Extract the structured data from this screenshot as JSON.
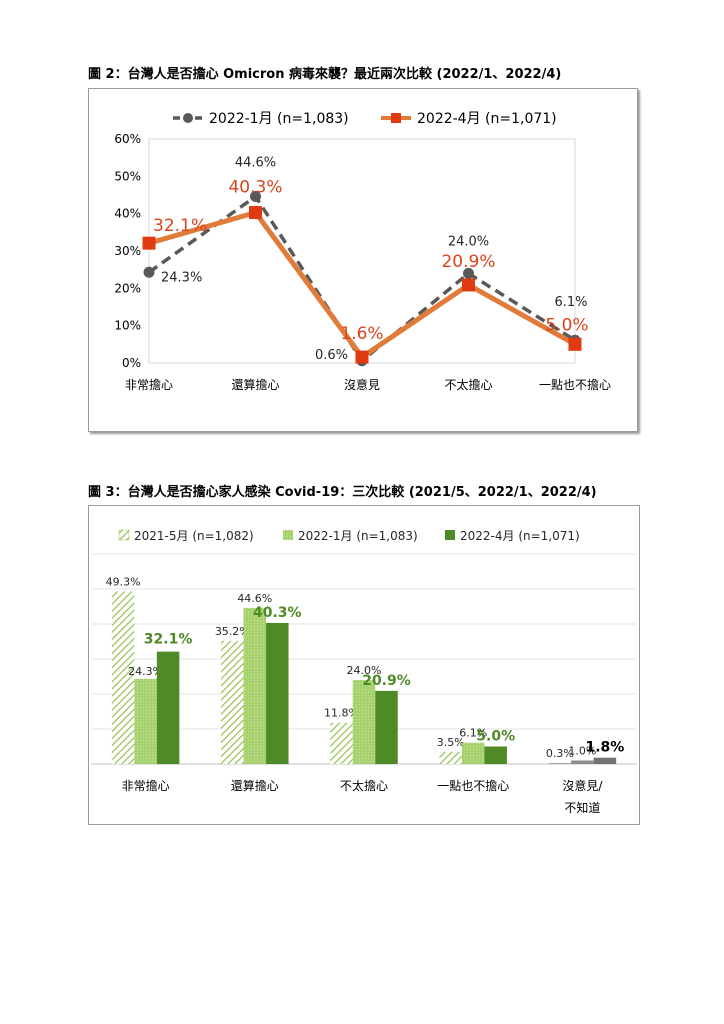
{
  "figure2": {
    "title": "圖 2：台灣人是否擔心 Omicron 病毒來襲？最近兩次比較  (2022/1、2022/4)",
    "chart_data": {
      "type": "line",
      "categories": [
        "非常擔心",
        "還算擔心",
        "沒意見",
        "不太擔心",
        "一點也不擔心"
      ],
      "yticks": [
        "0%",
        "10%",
        "20%",
        "30%",
        "40%",
        "50%",
        "60%"
      ],
      "ylim": [
        0,
        60
      ],
      "grid": false,
      "legend_position": "top",
      "series": [
        {
          "name": "2022-1月  (n=1,083)",
          "values": [
            24.3,
            44.6,
            0.6,
            24.0,
            6.1
          ],
          "labels": [
            "24.3%",
            "44.6%",
            "0.6%",
            "24.0%",
            "6.1%"
          ],
          "color": "#595959",
          "style": "dashed-circle"
        },
        {
          "name": "2022-4月  (n=1,071)",
          "values": [
            32.1,
            40.3,
            1.6,
            20.9,
            5.0
          ],
          "labels": [
            "32.1%",
            "40.3%",
            "1.6%",
            "20.9%",
            "5.0%"
          ],
          "color": "#E07B39",
          "marker_color": "#E03B10",
          "label_color": "#D9441C",
          "style": "solid-square"
        }
      ]
    }
  },
  "figure3": {
    "title": "圖 3：台灣人是否擔心家人感染 Covid-19：三次比較  (2021/5、2022/1、2022/4)",
    "chart_data": {
      "type": "bar",
      "categories": [
        "非常擔心",
        "還算擔心",
        "不太擔心",
        "一點也不擔心",
        "沒意見/\n不知道"
      ],
      "ylim": [
        0,
        60
      ],
      "grid": true,
      "legend_position": "top",
      "series": [
        {
          "name": "2021-5月  (n=1,082)",
          "values": [
            49.3,
            35.2,
            11.8,
            3.5,
            0.3
          ],
          "labels": [
            "49.3%",
            "35.2%",
            "11.8%",
            "3.5%",
            "0.3%"
          ],
          "color": "#92C050",
          "pattern": "hatched"
        },
        {
          "name": "2022-1月  (n=1,083)",
          "values": [
            24.3,
            44.6,
            24.0,
            6.1,
            1.0
          ],
          "labels": [
            "24.3%",
            "44.6%",
            "24.0%",
            "6.1%",
            "1.0%"
          ],
          "color": "#A6D16C",
          "pattern": "dotted"
        },
        {
          "name": "2022-4月  (n=1,071)",
          "values": [
            32.1,
            40.3,
            20.9,
            5.0,
            1.8
          ],
          "labels": [
            "32.1%",
            "40.3%",
            "20.9%",
            "5.0%",
            "1.8%"
          ],
          "color": "#4E8A26",
          "label_color": "#4E8A26",
          "pattern": "solid"
        }
      ],
      "last_category_colors": [
        "#a6a6a6",
        "#8c8c8c",
        "#737373"
      ]
    }
  }
}
